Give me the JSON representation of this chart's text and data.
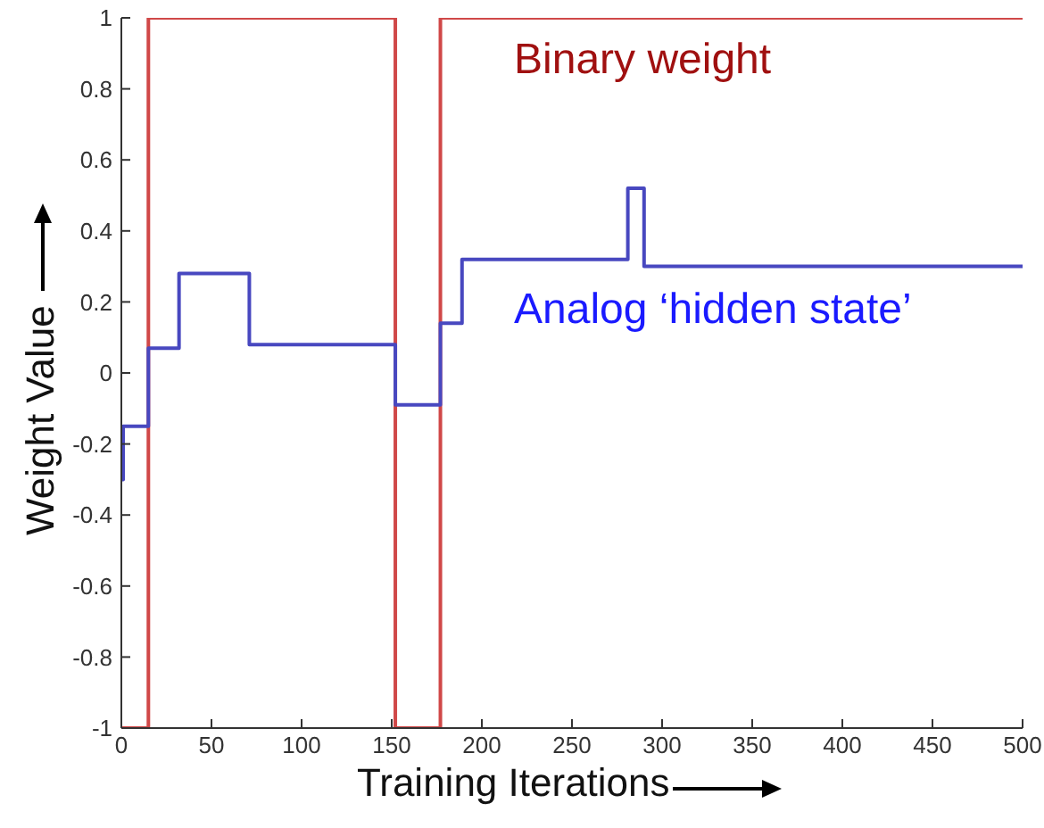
{
  "chart_data": {
    "type": "step",
    "xlabel": "Training Iterations",
    "ylabel": "Weight Value",
    "xlim": [
      0,
      500
    ],
    "xticks": [
      0,
      50,
      100,
      150,
      200,
      250,
      300,
      350,
      400,
      450,
      500
    ],
    "ylim": [
      -1,
      1
    ],
    "yticks": [
      -1,
      -0.8,
      -0.6,
      -0.4,
      -0.2,
      0,
      0.2,
      0.4,
      0.6,
      0.8,
      1
    ],
    "grid": false,
    "series": [
      {
        "name": "Binary weight",
        "color": "#d04848",
        "x": [
          0,
          15,
          152,
          177,
          500
        ],
        "values": [
          -1,
          1,
          -1,
          1,
          1
        ]
      },
      {
        "name": "Analog ‘hidden state’",
        "color": "#4848c0",
        "x": [
          0,
          1,
          15,
          32,
          71,
          152,
          177,
          189,
          281,
          290,
          500
        ],
        "values": [
          -0.3,
          -0.15,
          0.07,
          0.28,
          0.08,
          -0.09,
          0.14,
          0.32,
          0.52,
          0.3,
          0.3
        ]
      }
    ]
  }
}
